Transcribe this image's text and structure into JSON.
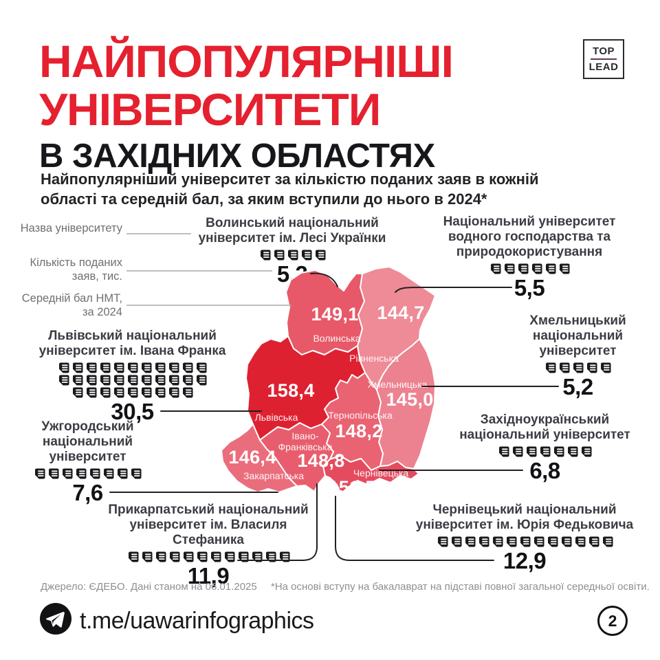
{
  "header": {
    "title_line1": "НАЙПОПУЛЯРНІШІ",
    "title_line2": "УНІВЕРСИТЕТИ",
    "title_line3": "В ЗАХІДНИХ ОБЛАСТЯХ",
    "subtitle_line1": "Найпопулярніший університет за кількістю поданих заяв в кожній",
    "subtitle_line2": "області та середній бал, за яким вступили до нього в 2024*",
    "logo_top": "TOP",
    "logo_bottom": "LEAD"
  },
  "legend": {
    "name_label": "Назва університету",
    "count_label": "Кількість поданих заяв, тис.",
    "score_label": "Середній бал НМТ, за 2024"
  },
  "universities": [
    {
      "id": "volyn",
      "name": "Волинський національний університет ім. Лесі Українки",
      "applications": "5,2",
      "icons": 5,
      "region": "Волинська"
    },
    {
      "id": "vodhosp",
      "name": "Національний університет водного господарства та природокористування",
      "applications": "5,5",
      "icons": 6,
      "region": "Рівненська"
    },
    {
      "id": "khmelnytskyi",
      "name": "Хмельницький національний університет",
      "applications": "5,2",
      "icons": 5,
      "region": "Хмельницька"
    },
    {
      "id": "lviv-franko",
      "name": "Львівський національний університет ім. Івана Франка",
      "applications": "30,5",
      "icons": 31,
      "region": "Львівська"
    },
    {
      "id": "uzhhorod",
      "name": "Ужгородський національний університет",
      "applications": "7,6",
      "icons": 8,
      "region": "Закарпатська"
    },
    {
      "id": "zakhidnoukrainskyi",
      "name": "Західноукраїнський національний університет",
      "applications": "6,8",
      "icons": 7,
      "region": "Тернопільська"
    },
    {
      "id": "prykarpatskyi",
      "name": "Прикарпатський національний університет ім. Власиля Стефаника",
      "applications": "11,9",
      "icons": 12,
      "region": "Івано-Франківська"
    },
    {
      "id": "chernivetskyi",
      "name": "Чернівецький національний університет ім. Юрія Федьковича",
      "applications": "12,9",
      "icons": 13,
      "region": "Чернівецька"
    }
  ],
  "map": {
    "regions": [
      {
        "name": "Волинська",
        "score": "149,1",
        "color": "#E75968"
      },
      {
        "name": "Рівненська",
        "score": "144,7",
        "color": "#EE8B96"
      },
      {
        "name": "Хмельницька",
        "score": "145,0",
        "color": "#EC8290"
      },
      {
        "name": "Тернопільська",
        "score": "148,2",
        "color": "#E96373"
      },
      {
        "name": "Львівська",
        "score": "158,4",
        "color": "#DE2131"
      },
      {
        "name": "Івано-Франківська",
        "score": "148,8",
        "color": "#E85D6D",
        "name_lines": [
          "Івано-",
          "Франківська"
        ]
      },
      {
        "name": "Закарпатська",
        "score": "146,4",
        "color": "#EA6D7C"
      },
      {
        "name": "Чернівецька",
        "score": "151,5",
        "color": "#E44B5E"
      }
    ]
  },
  "footer": {
    "source": "Джерело: ЄДЕБО. Дані станом на 06.01.2025",
    "note": "*На основі вступу на бакалаврат на підставі повної загальної середньої освіти.",
    "telegram": "t.me/uawarinfographics",
    "page_number": "2"
  },
  "accent_colors": {
    "title_red": "#E5202F",
    "icon_black": "#19191C"
  },
  "chart_data": {
    "type": "heatmap",
    "subtype": "choropleth-map-with-pictograms",
    "title": "Найпопулярніші університети в західних областях",
    "subtitle": "Найпопулярніший університет за кількістю поданих заяв в кожній області та середній бал, за яким вступили до нього в 2024*",
    "value_legend": {
      "applications_unit": "тис. заяв",
      "score_unit": "Середній бал НМТ, за 2024"
    },
    "regions": [
      {
        "region": "Волинська",
        "avg_score_nmt_2024": 149.1,
        "university": "Волинський національний університет ім. Лесі Українки",
        "applications_thousands": 5.2
      },
      {
        "region": "Рівненська",
        "avg_score_nmt_2024": 144.7,
        "university": "Національний університет водного господарства та природокористування",
        "applications_thousands": 5.5
      },
      {
        "region": "Хмельницька",
        "avg_score_nmt_2024": 145.0,
        "university": "Хмельницький національний університет",
        "applications_thousands": 5.2
      },
      {
        "region": "Тернопільська",
        "avg_score_nmt_2024": 148.2,
        "university": "Західноукраїнський національний університет",
        "applications_thousands": 6.8
      },
      {
        "region": "Львівська",
        "avg_score_nmt_2024": 158.4,
        "university": "Львівський національний університет ім. Івана Франка",
        "applications_thousands": 30.5
      },
      {
        "region": "Івано-Франківська",
        "avg_score_nmt_2024": 148.8,
        "university": "Прикарпатський національний університет ім. Власиля Стефаника",
        "applications_thousands": 11.9
      },
      {
        "region": "Закарпатська",
        "avg_score_nmt_2024": 146.4,
        "university": "Ужгородський національний університет",
        "applications_thousands": 7.6
      },
      {
        "region": "Чернівецька",
        "avg_score_nmt_2024": 151.5,
        "university": "Чернівецький національний університет ім. Юрія Федьковича",
        "applications_thousands": 12.9
      }
    ]
  }
}
